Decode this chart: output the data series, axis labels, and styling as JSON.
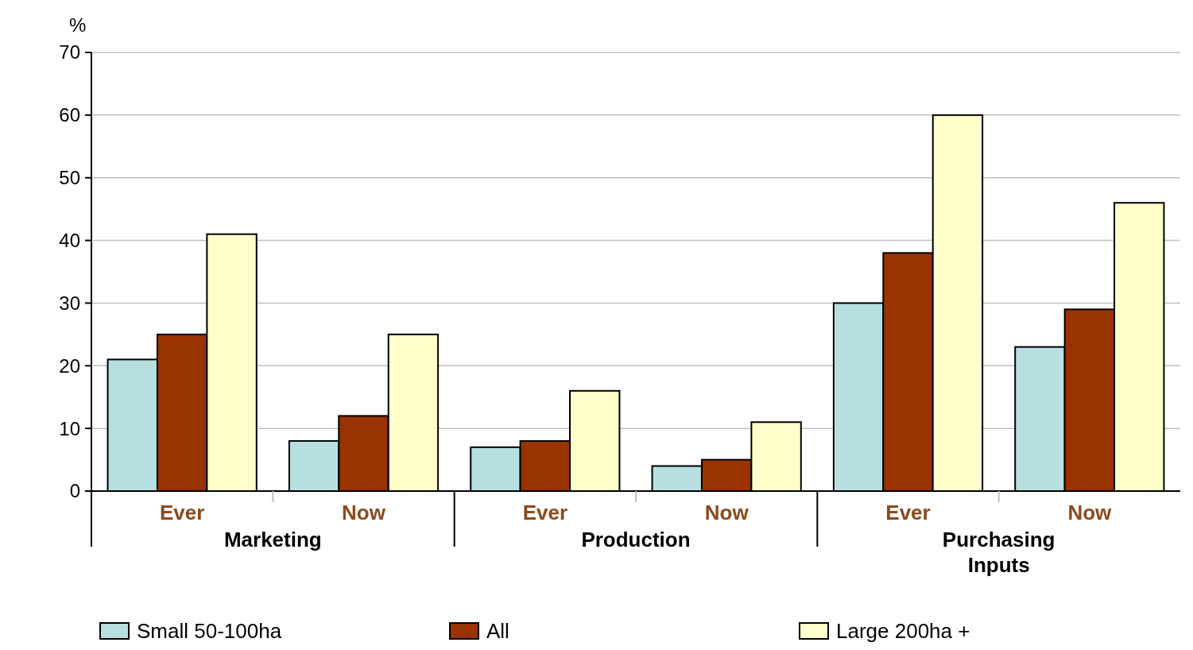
{
  "chart_data": {
    "type": "bar",
    "ylabel": "%",
    "categories": [
      "Ever",
      "Now",
      "Ever",
      "Now",
      "Ever",
      "Now"
    ],
    "series": [
      {
        "name": "Small 50-100ha",
        "color": "#b8dfe0",
        "values": [
          21,
          8,
          7,
          4,
          30,
          23
        ]
      },
      {
        "name": "All",
        "color": "#993300",
        "values": [
          25,
          12,
          8,
          5,
          38,
          29
        ]
      },
      {
        "name": "Large 200ha +",
        "color": "#ffffcc",
        "values": [
          41,
          25,
          16,
          11,
          60,
          46
        ]
      }
    ],
    "annotations": [
      "Marketing",
      "Production",
      "Purchasing Inputs"
    ],
    "ylim": [
      0,
      70
    ],
    "yticks": [
      0,
      10,
      20,
      30,
      40,
      50,
      60,
      70
    ],
    "grid": "y",
    "legend": "bottom"
  }
}
